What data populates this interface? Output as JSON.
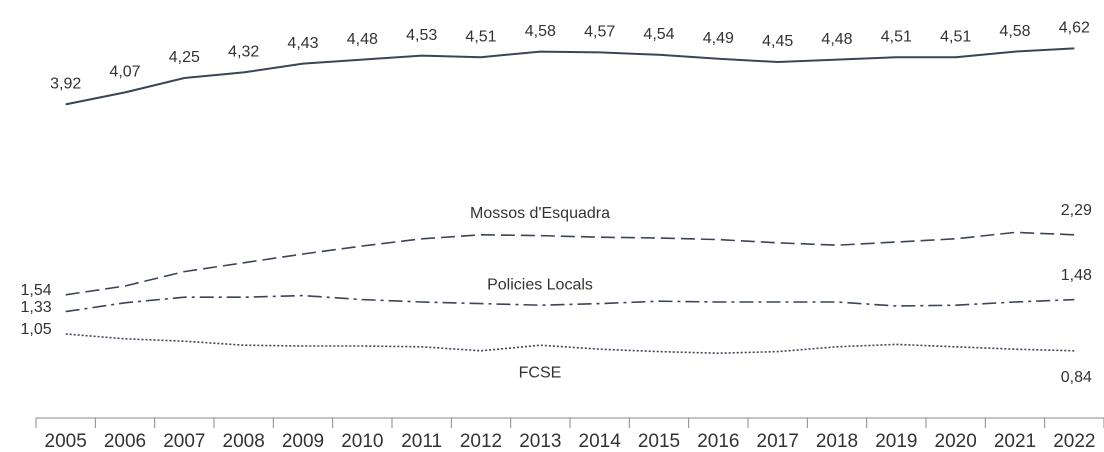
{
  "chart_data": {
    "type": "line",
    "categories": [
      "2005",
      "2006",
      "2007",
      "2008",
      "2009",
      "2010",
      "2011",
      "2012",
      "2013",
      "2014",
      "2015",
      "2016",
      "2017",
      "2018",
      "2019",
      "2020",
      "2021",
      "2022"
    ],
    "ylim": [
      0,
      5.2
    ],
    "series": [
      {
        "color": "#3b4556",
        "dash": "solid",
        "values": [
          3.92,
          4.07,
          4.25,
          4.32,
          4.43,
          4.48,
          4.53,
          4.51,
          4.58,
          4.57,
          4.54,
          4.49,
          4.45,
          4.48,
          4.51,
          4.51,
          4.58,
          4.62
        ],
        "value_labels": [
          "3,92",
          "4,07",
          "4,25",
          "4,32",
          "4,43",
          "4,48",
          "4,53",
          "4,51",
          "4,58",
          "4,57",
          "4,54",
          "4,49",
          "4,45",
          "4,48",
          "4,51",
          "4,51",
          "4,58",
          "4,62"
        ]
      },
      {
        "name": "Mossos d'Esquadra",
        "color": "#3b4556",
        "dash": "dashed",
        "values": [
          1.54,
          1.65,
          1.83,
          1.94,
          2.05,
          2.15,
          2.24,
          2.29,
          2.28,
          2.26,
          2.25,
          2.23,
          2.19,
          2.16,
          2.2,
          2.24,
          2.32,
          2.29
        ],
        "value_labels": [
          "1,54",
          null,
          null,
          null,
          null,
          null,
          null,
          null,
          null,
          null,
          null,
          null,
          null,
          null,
          null,
          null,
          null,
          "2,29"
        ]
      },
      {
        "name": "Policies Locals",
        "color": "#3b4556",
        "dash": "dashdot",
        "values": [
          1.33,
          1.44,
          1.51,
          1.51,
          1.53,
          1.48,
          1.45,
          1.43,
          1.41,
          1.43,
          1.46,
          1.45,
          1.45,
          1.45,
          1.4,
          1.41,
          1.45,
          1.48
        ],
        "value_labels": [
          "1,33",
          null,
          null,
          null,
          null,
          null,
          null,
          null,
          null,
          null,
          null,
          null,
          null,
          null,
          null,
          null,
          null,
          "1,48"
        ]
      },
      {
        "name": "FCSE",
        "color": "#3b4556",
        "dash": "dotted",
        "values": [
          1.05,
          0.99,
          0.96,
          0.91,
          0.9,
          0.9,
          0.89,
          0.84,
          0.91,
          0.86,
          0.83,
          0.81,
          0.83,
          0.89,
          0.92,
          0.89,
          0.86,
          0.84
        ],
        "value_labels": [
          "1,05",
          null,
          null,
          null,
          null,
          null,
          null,
          null,
          null,
          null,
          null,
          null,
          null,
          null,
          null,
          null,
          null,
          "0,84"
        ]
      }
    ]
  }
}
